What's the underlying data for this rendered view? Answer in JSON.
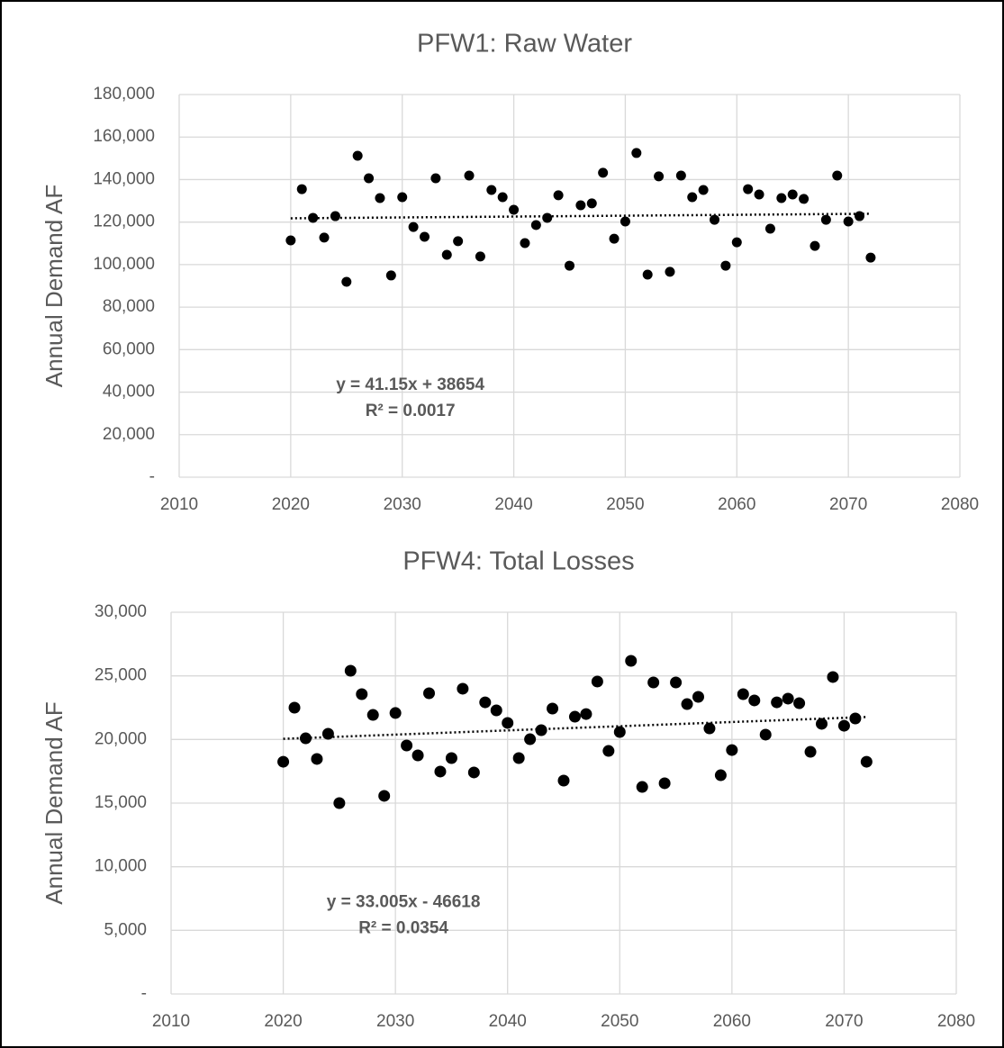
{
  "chart_data": [
    {
      "type": "scatter",
      "title": "PFW1: Raw Water",
      "y_label": "Annual Demand AF",
      "color": "#000000",
      "grid": true,
      "x": [
        2020,
        2021,
        2022,
        2023,
        2024,
        2025,
        2026,
        2027,
        2028,
        2029,
        2030,
        2031,
        2032,
        2033,
        2034,
        2035,
        2036,
        2037,
        2038,
        2039,
        2040,
        2041,
        2042,
        2043,
        2044,
        2045,
        2046,
        2047,
        2048,
        2049,
        2050,
        2051,
        2052,
        2053,
        2054,
        2055,
        2056,
        2057,
        2058,
        2059,
        2060,
        2061,
        2062,
        2063,
        2064,
        2065,
        2066,
        2067,
        2068,
        2069,
        2070,
        2071,
        2072
      ],
      "values": [
        111400,
        135500,
        122000,
        112700,
        122800,
        91900,
        151200,
        140600,
        131300,
        94900,
        131700,
        117700,
        113100,
        140600,
        104600,
        111000,
        141900,
        103800,
        135100,
        131700,
        125800,
        110100,
        118600,
        122000,
        132600,
        99500,
        127900,
        128800,
        143200,
        112200,
        120300,
        152500,
        95300,
        141500,
        96600,
        141900,
        131700,
        135100,
        121100,
        99500,
        110500,
        135500,
        133000,
        116900,
        131300,
        133000,
        130900,
        108800,
        121100,
        141900,
        120300,
        122800,
        103300
      ],
      "xlim": [
        2010,
        2080
      ],
      "xticks": [
        2010,
        2020,
        2030,
        2040,
        2050,
        2060,
        2070,
        2080
      ],
      "ylim": [
        0,
        180000
      ],
      "yticks": [
        {
          "value": 0,
          "label": "-"
        },
        {
          "value": 20000,
          "label": "20,000"
        },
        {
          "value": 40000,
          "label": "40,000"
        },
        {
          "value": 60000,
          "label": "60,000"
        },
        {
          "value": 80000,
          "label": "80,000"
        },
        {
          "value": 100000,
          "label": "100,000"
        },
        {
          "value": 120000,
          "label": "120,000"
        },
        {
          "value": 140000,
          "label": "140,000"
        },
        {
          "value": 160000,
          "label": "160,000"
        },
        {
          "value": 180000,
          "label": "180,000"
        }
      ],
      "trendline": {
        "slope": 41.15,
        "intercept": 38654,
        "equation": "y = 41.15x + 38654",
        "r2": "R² = 0.0017"
      }
    },
    {
      "type": "scatter",
      "title": "PFW4: Total Losses",
      "y_label": "Annual Demand AF",
      "color": "#000000",
      "grid": true,
      "x": [
        2020,
        2021,
        2022,
        2023,
        2024,
        2025,
        2026,
        2027,
        2028,
        2029,
        2030,
        2031,
        2032,
        2033,
        2034,
        2035,
        2036,
        2037,
        2038,
        2039,
        2040,
        2041,
        2042,
        2043,
        2044,
        2045,
        2046,
        2047,
        2048,
        2049,
        2050,
        2051,
        2052,
        2053,
        2054,
        2055,
        2056,
        2057,
        2058,
        2059,
        2060,
        2061,
        2062,
        2063,
        2064,
        2065,
        2066,
        2067,
        2068,
        2069,
        2070,
        2071,
        2072
      ],
      "values": [
        18250,
        22500,
        20090,
        18470,
        20450,
        15000,
        25400,
        23560,
        21930,
        15570,
        22080,
        19530,
        18750,
        23630,
        17480,
        18540,
        23990,
        17410,
        22920,
        22290,
        21300,
        18540,
        20020,
        20730,
        22430,
        16770,
        21790,
        22000,
        24550,
        19100,
        20590,
        26180,
        16270,
        24480,
        16560,
        24480,
        22780,
        23350,
        20870,
        17190,
        19170,
        23560,
        23070,
        20380,
        22920,
        23210,
        22850,
        19030,
        21230,
        24910,
        21080,
        21650,
        18250
      ],
      "xlim": [
        2010,
        2080
      ],
      "xticks": [
        2010,
        2020,
        2030,
        2040,
        2050,
        2060,
        2070,
        2080
      ],
      "ylim": [
        0,
        30000
      ],
      "yticks": [
        {
          "value": 0,
          "label": "-"
        },
        {
          "value": 5000,
          "label": "5,000"
        },
        {
          "value": 10000,
          "label": "10,000"
        },
        {
          "value": 15000,
          "label": "15,000"
        },
        {
          "value": 20000,
          "label": "20,000"
        },
        {
          "value": 25000,
          "label": "25,000"
        },
        {
          "value": 30000,
          "label": "30,000"
        }
      ],
      "trendline": {
        "slope": 33.005,
        "intercept": -46618,
        "equation": "y = 33.005x - 46618",
        "r2": "R² = 0.0354"
      }
    }
  ]
}
